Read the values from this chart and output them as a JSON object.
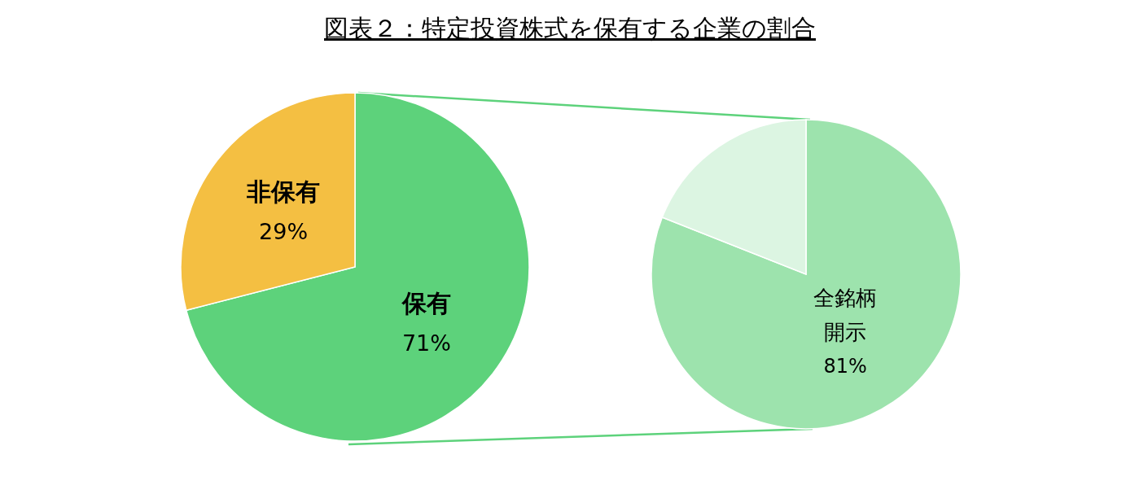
{
  "chart_data": [
    {
      "type": "pie",
      "title": "図表２：特定投資株式を保有する企業の割合",
      "categories": [
        "保有",
        "非保有"
      ],
      "values": [
        71,
        29
      ],
      "colors": [
        "#5dd27b",
        "#f4bf42"
      ],
      "value_labels": [
        "71%",
        "29%"
      ]
    },
    {
      "type": "pie",
      "categories": [
        "全銘柄開示",
        null
      ],
      "values": [
        81,
        19
      ],
      "colors": [
        "#9de3ad",
        "#dcf5e2"
      ],
      "value_labels": [
        "81%",
        null
      ]
    }
  ]
}
